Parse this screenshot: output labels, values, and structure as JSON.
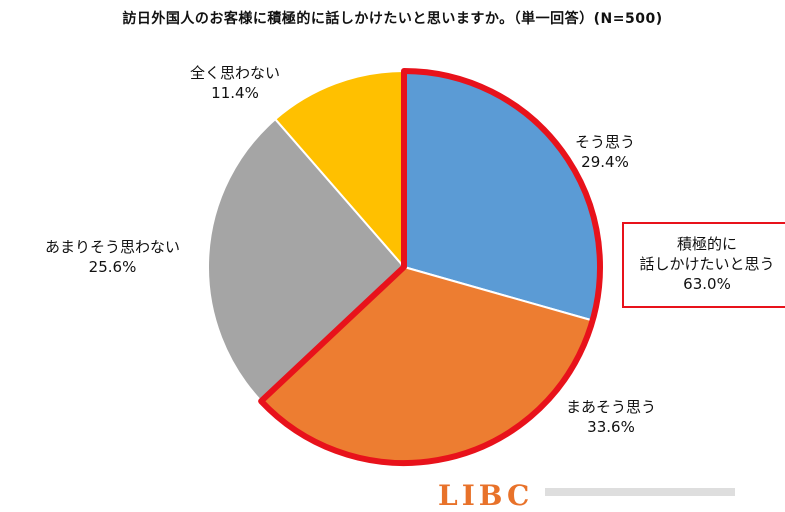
{
  "chart_data": {
    "type": "pie",
    "title": "訪日外国人のお客様に積極的に話しかけたいと思いますか。（単一回答）(N=500)",
    "start_angle_deg": 0,
    "direction": "clockwise",
    "slices": [
      {
        "label": "そう思う",
        "value": 29.4,
        "value_text": "29.4%",
        "color": "#5b9bd5",
        "highlighted": true
      },
      {
        "label": "まあそう思う",
        "value": 33.6,
        "value_text": "33.6%",
        "color": "#ed7d31",
        "highlighted": true
      },
      {
        "label": "あまりそう思わない",
        "value": 25.6,
        "value_text": "25.6%",
        "color": "#a5a5a5",
        "highlighted": false
      },
      {
        "label": "全く思わない",
        "value": 11.4,
        "value_text": "11.4%",
        "color": "#ffc000",
        "highlighted": false
      }
    ],
    "highlight_color": "#e8121b",
    "callout": {
      "line1": "積極的に",
      "line2": "話しかけたいと思う",
      "value_text": "63.0%"
    }
  },
  "logo": {
    "text": "LIBC"
  }
}
